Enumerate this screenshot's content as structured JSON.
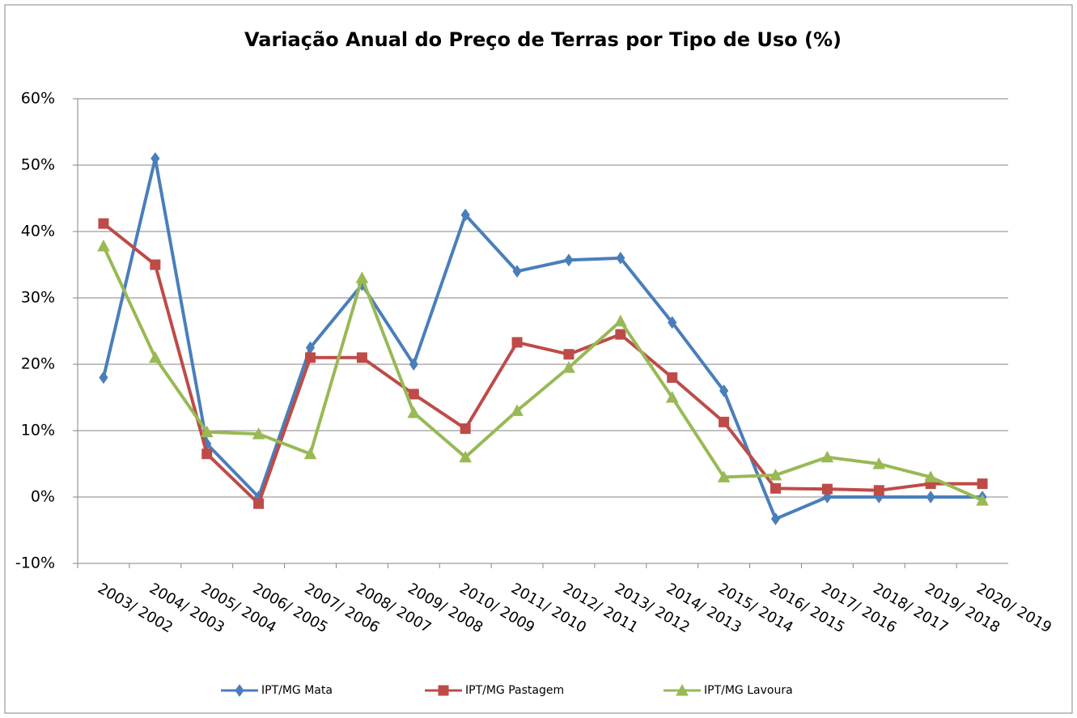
{
  "chart_data": {
    "type": "line",
    "title": "Variação Anual do Preço de Terras por Tipo de Uso (%)",
    "categories": [
      "2003/ 2002",
      "2004/ 2003",
      "2005/ 2004",
      "2006/ 2005",
      "2007/ 2006",
      "2008/ 2007",
      "2009/ 2008",
      "2010/ 2009",
      "2011/ 2010",
      "2012/ 2011",
      "2013/ 2012",
      "2014/ 2013",
      "2015/ 2014",
      "2016/ 2015",
      "2017/ 2016",
      "2018/ 2017",
      "2019/ 2018",
      "2020/ 2019"
    ],
    "series": [
      {
        "name": "IPT/MG Mata",
        "color": "#4a7ebb",
        "marker": "diamond",
        "values": [
          18,
          51,
          8,
          0,
          22.5,
          32,
          20,
          42.5,
          34,
          35.7,
          36,
          26.3,
          16,
          -3.3,
          0,
          0,
          0,
          0
        ]
      },
      {
        "name": "IPT/MG Pastagem",
        "color": "#be4b48",
        "marker": "square",
        "values": [
          41.2,
          35,
          6.5,
          -1,
          21,
          21,
          15.5,
          10.3,
          23.3,
          21.5,
          24.5,
          18,
          11.3,
          1.3,
          1.2,
          1,
          2,
          2
        ]
      },
      {
        "name": "IPT/MG Lavoura",
        "color": "#98b954",
        "marker": "triangle",
        "values": [
          37.8,
          21,
          9.8,
          9.5,
          6.5,
          33,
          12.7,
          6,
          13,
          19.5,
          26.5,
          15,
          3,
          3.3,
          6,
          5,
          3,
          -0.5
        ]
      }
    ],
    "ylim": [
      -10,
      60
    ],
    "yticks": [
      {
        "value": -10,
        "label": "-10%"
      },
      {
        "value": 0,
        "label": "0%"
      },
      {
        "value": 10,
        "label": "10%"
      },
      {
        "value": 20,
        "label": "20%"
      },
      {
        "value": 30,
        "label": "30%"
      },
      {
        "value": 40,
        "label": "40%"
      },
      {
        "value": 50,
        "label": "50%"
      },
      {
        "value": 60,
        "label": "60%"
      }
    ],
    "grid": true,
    "legend": "bottom"
  }
}
